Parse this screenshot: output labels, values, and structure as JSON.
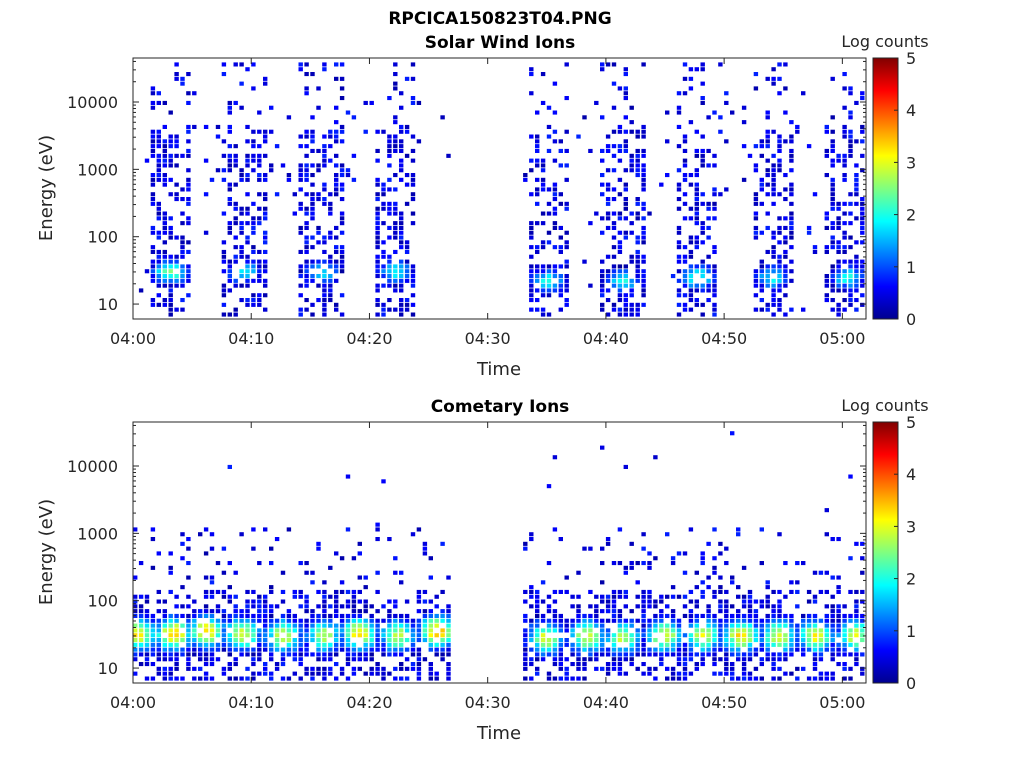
{
  "figure_title": "RPCICA150823T04.PNG",
  "chart_data": [
    {
      "type": "heatmap",
      "title": "Solar Wind Ions",
      "xlabel": "Time",
      "ylabel": "Energy (eV)",
      "x_ticks": [
        "04:00",
        "04:10",
        "04:20",
        "04:30",
        "04:40",
        "04:50",
        "05:00"
      ],
      "x_range": [
        "04:00",
        "05:02"
      ],
      "y_scale": "log",
      "y_ticks": [
        10,
        100,
        1000,
        10000
      ],
      "y_range": [
        6,
        45000
      ],
      "colorbar": {
        "label": "Log counts",
        "range": [
          0,
          5
        ],
        "ticks": [
          0,
          1,
          2,
          3,
          4,
          5
        ],
        "colormap": "jet"
      },
      "no_data_interval": [
        "04:27",
        "04:33"
      ],
      "bursts": [
        {
          "center_min": 3.2,
          "peak_energy_eV": 30,
          "peak_log_counts": 2.4
        },
        {
          "center_min": 9.5,
          "peak_energy_eV": 30,
          "peak_log_counts": 1.8
        },
        {
          "center_min": 16.0,
          "peak_energy_eV": 30,
          "peak_log_counts": 1.8
        },
        {
          "center_min": 22.3,
          "peak_energy_eV": 30,
          "peak_log_counts": 1.9
        },
        {
          "center_min": 35.2,
          "peak_energy_eV": 22,
          "peak_log_counts": 2.0
        },
        {
          "center_min": 41.5,
          "peak_energy_eV": 22,
          "peak_log_counts": 1.9
        },
        {
          "center_min": 47.8,
          "peak_energy_eV": 25,
          "peak_log_counts": 2.2
        },
        {
          "center_min": 54.2,
          "peak_energy_eV": 25,
          "peak_log_counts": 1.9
        },
        {
          "center_min": 60.5,
          "peak_energy_eV": 25,
          "peak_log_counts": 1.9
        }
      ]
    },
    {
      "type": "heatmap",
      "title": "Cometary Ions",
      "xlabel": "Time",
      "ylabel": "Energy (eV)",
      "x_ticks": [
        "04:00",
        "04:10",
        "04:20",
        "04:30",
        "04:40",
        "04:50",
        "05:00"
      ],
      "x_range": [
        "04:00",
        "05:02"
      ],
      "y_scale": "log",
      "y_ticks": [
        10,
        100,
        1000,
        10000
      ],
      "y_range": [
        6,
        45000
      ],
      "colorbar": {
        "label": "Log counts",
        "range": [
          0,
          5
        ],
        "ticks": [
          0,
          1,
          2,
          3,
          4,
          5
        ],
        "colormap": "jet"
      },
      "no_data_interval": [
        "04:27",
        "04:33"
      ],
      "bursts": [
        {
          "center_min": 0.5,
          "peak_energy_eV": 32,
          "peak_log_counts": 3.2
        },
        {
          "center_min": 3.5,
          "peak_energy_eV": 32,
          "peak_log_counts": 3.5
        },
        {
          "center_min": 6.3,
          "peak_energy_eV": 35,
          "peak_log_counts": 3.3
        },
        {
          "center_min": 9.3,
          "peak_energy_eV": 32,
          "peak_log_counts": 3.0
        },
        {
          "center_min": 12.8,
          "peak_energy_eV": 30,
          "peak_log_counts": 3.0
        },
        {
          "center_min": 16.2,
          "peak_energy_eV": 30,
          "peak_log_counts": 2.7
        },
        {
          "center_min": 19.2,
          "peak_energy_eV": 32,
          "peak_log_counts": 3.3
        },
        {
          "center_min": 22.5,
          "peak_energy_eV": 30,
          "peak_log_counts": 2.8
        },
        {
          "center_min": 25.8,
          "peak_energy_eV": 35,
          "peak_log_counts": 3.5
        },
        {
          "center_min": 35.0,
          "peak_energy_eV": 28,
          "peak_log_counts": 2.9
        },
        {
          "center_min": 38.5,
          "peak_energy_eV": 30,
          "peak_log_counts": 3.0
        },
        {
          "center_min": 41.5,
          "peak_energy_eV": 28,
          "peak_log_counts": 2.8
        },
        {
          "center_min": 45.0,
          "peak_energy_eV": 30,
          "peak_log_counts": 3.1
        },
        {
          "center_min": 48.3,
          "peak_energy_eV": 30,
          "peak_log_counts": 3.0
        },
        {
          "center_min": 51.5,
          "peak_energy_eV": 30,
          "peak_log_counts": 3.3
        },
        {
          "center_min": 54.7,
          "peak_energy_eV": 30,
          "peak_log_counts": 3.0
        },
        {
          "center_min": 57.8,
          "peak_energy_eV": 30,
          "peak_log_counts": 3.1
        },
        {
          "center_min": 61.2,
          "peak_energy_eV": 30,
          "peak_log_counts": 2.9
        }
      ]
    }
  ]
}
